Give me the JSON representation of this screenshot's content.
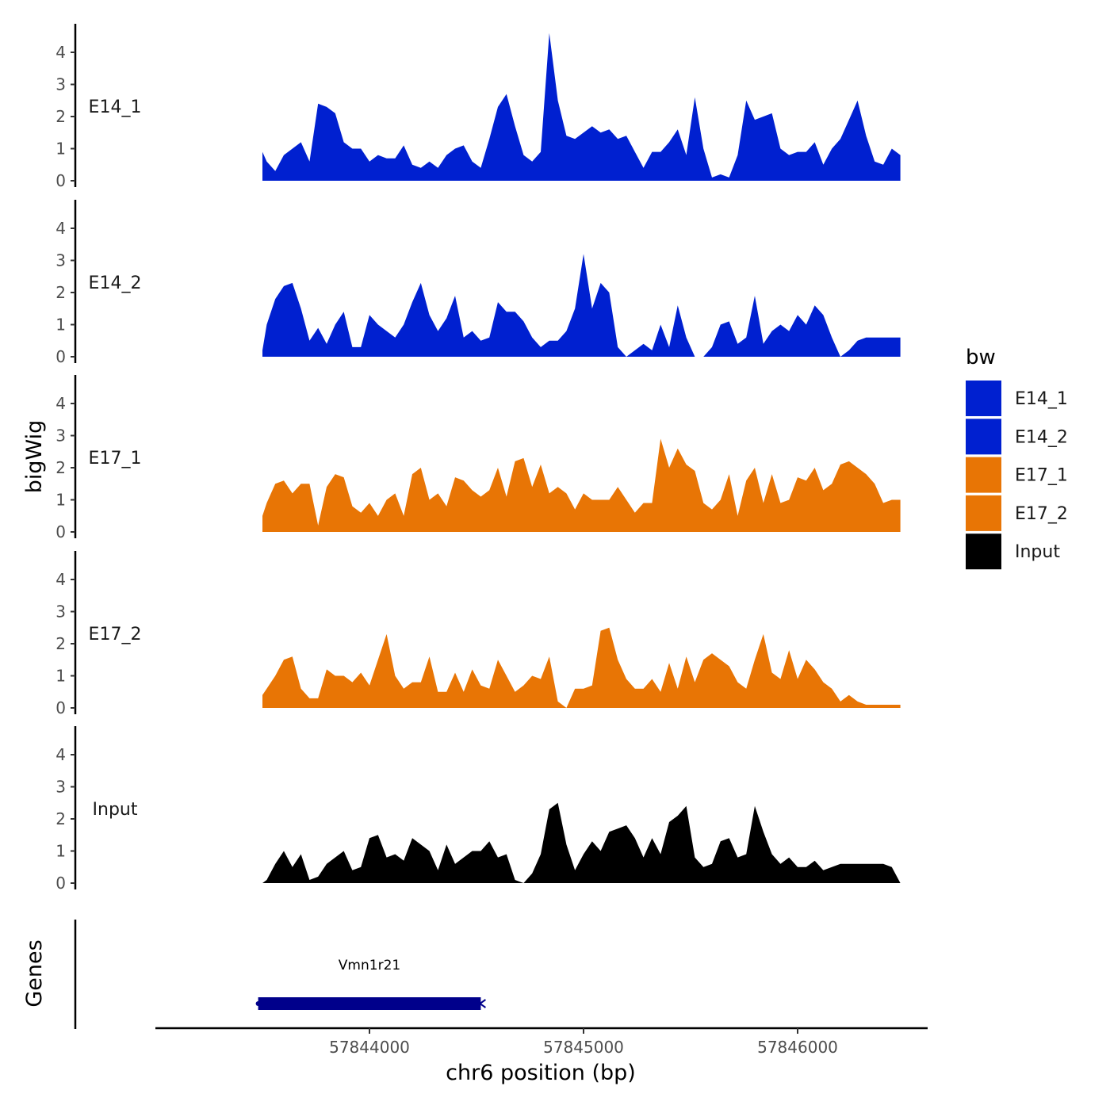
{
  "chart_data": {
    "type": "area",
    "title": "",
    "y_axis_title": "bigWig",
    "genes_axis_title": "Genes",
    "xlabel": "chr6 position (bp)",
    "x_ticks": [
      57844000,
      57845000,
      57846000
    ],
    "x_tick_labels": [
      "57844000",
      "57845000",
      "57846000"
    ],
    "xlim": [
      57843000,
      57846600
    ],
    "ylim": [
      0,
      4.8
    ],
    "y_ticks": [
      0,
      1,
      2,
      3,
      4
    ],
    "y_tick_labels": [
      "0",
      "1",
      "2",
      "3",
      "4"
    ],
    "grid": false,
    "legend": {
      "title": "bw",
      "position": "right",
      "entries": [
        {
          "label": "E14_1",
          "color": "#0020D0"
        },
        {
          "label": "E14_2",
          "color": "#0020D0"
        },
        {
          "label": "E17_1",
          "color": "#E87505"
        },
        {
          "label": "E17_2",
          "color": "#E87505"
        },
        {
          "label": "Input",
          "color": "#000000"
        }
      ]
    },
    "series": [
      {
        "name": "E14_1",
        "color": "#0020D0",
        "x": [
          57843500,
          57843520,
          57843560,
          57843600,
          57843640,
          57843680,
          57843720,
          57843760,
          57843800,
          57843840,
          57843880,
          57843920,
          57843960,
          57844000,
          57844040,
          57844080,
          57844120,
          57844160,
          57844200,
          57844240,
          57844280,
          57844320,
          57844360,
          57844400,
          57844440,
          57844480,
          57844520,
          57844560,
          57844600,
          57844640,
          57844680,
          57844720,
          57844760,
          57844800,
          57844840,
          57844880,
          57844920,
          57844960,
          57845000,
          57845040,
          57845080,
          57845120,
          57845160,
          57845200,
          57845240,
          57845280,
          57845320,
          57845360,
          57845400,
          57845440,
          57845480,
          57845520,
          57845560,
          57845600,
          57845640,
          57845680,
          57845720,
          57845760,
          57845800,
          57845840,
          57845880,
          57845920,
          57845960,
          57846000,
          57846040,
          57846080,
          57846120,
          57846160,
          57846200,
          57846240,
          57846280,
          57846320,
          57846360,
          57846400,
          57846440,
          57846480
        ],
        "y": [
          0.9,
          0.6,
          0.3,
          0.8,
          1.0,
          1.2,
          0.6,
          2.4,
          2.3,
          2.1,
          1.2,
          1.0,
          1.0,
          0.6,
          0.8,
          0.7,
          0.7,
          1.1,
          0.5,
          0.4,
          0.6,
          0.4,
          0.8,
          1.0,
          1.1,
          0.6,
          0.4,
          1.3,
          2.3,
          2.7,
          1.7,
          0.8,
          0.6,
          0.9,
          4.6,
          2.5,
          1.4,
          1.3,
          1.5,
          1.7,
          1.5,
          1.6,
          1.3,
          1.4,
          0.9,
          0.4,
          0.9,
          0.9,
          1.2,
          1.6,
          0.8,
          2.6,
          1.0,
          0.1,
          0.2,
          0.1,
          0.8,
          2.5,
          1.9,
          2.0,
          2.1,
          1.0,
          0.8,
          0.9,
          0.9,
          1.2,
          0.5,
          1.0,
          1.3,
          1.9,
          2.5,
          1.4,
          0.6,
          0.5,
          1.0,
          0.8
        ]
      },
      {
        "name": "E14_2",
        "color": "#0020D0",
        "x": [
          57843500,
          57843520,
          57843560,
          57843600,
          57843640,
          57843680,
          57843720,
          57843760,
          57843800,
          57843840,
          57843880,
          57843920,
          57843960,
          57844000,
          57844040,
          57844080,
          57844120,
          57844160,
          57844200,
          57844240,
          57844280,
          57844320,
          57844360,
          57844400,
          57844440,
          57844480,
          57844520,
          57844560,
          57844600,
          57844640,
          57844680,
          57844720,
          57844760,
          57844800,
          57844840,
          57844880,
          57844920,
          57844960,
          57845000,
          57845040,
          57845080,
          57845120,
          57845160,
          57845200,
          57845240,
          57845280,
          57845320,
          57845360,
          57845400,
          57845440,
          57845480,
          57845520,
          57845560,
          57845600,
          57845640,
          57845680,
          57845720,
          57845760,
          57845800,
          57845840,
          57845880,
          57845920,
          57845960,
          57846000,
          57846040,
          57846080,
          57846120,
          57846160,
          57846200,
          57846240,
          57846280,
          57846320,
          57846360,
          57846400,
          57846440,
          57846480
        ],
        "y": [
          0.2,
          1.0,
          1.8,
          2.2,
          2.3,
          1.5,
          0.5,
          0.9,
          0.4,
          1.0,
          1.4,
          0.3,
          0.3,
          1.3,
          1.0,
          0.8,
          0.6,
          1.0,
          1.7,
          2.3,
          1.3,
          0.8,
          1.2,
          1.9,
          0.6,
          0.8,
          0.5,
          0.6,
          1.7,
          1.4,
          1.4,
          1.1,
          0.6,
          0.3,
          0.5,
          0.5,
          0.8,
          1.5,
          3.2,
          1.5,
          2.3,
          2.0,
          0.3,
          0.0,
          0.2,
          0.4,
          0.2,
          1.0,
          0.3,
          1.6,
          0.6,
          0.0,
          0.0,
          0.3,
          1.0,
          1.1,
          0.4,
          0.6,
          1.9,
          0.4,
          0.8,
          1.0,
          0.8,
          1.3,
          1.0,
          1.6,
          1.3,
          0.6,
          0.0,
          0.2,
          0.5,
          0.6,
          0.6,
          0.6,
          0.6,
          0.6
        ]
      },
      {
        "name": "E17_1",
        "color": "#E87505",
        "x": [
          57843500,
          57843520,
          57843560,
          57843600,
          57843640,
          57843680,
          57843720,
          57843760,
          57843800,
          57843840,
          57843880,
          57843920,
          57843960,
          57844000,
          57844040,
          57844080,
          57844120,
          57844160,
          57844200,
          57844240,
          57844280,
          57844320,
          57844360,
          57844400,
          57844440,
          57844480,
          57844520,
          57844560,
          57844600,
          57844640,
          57844680,
          57844720,
          57844760,
          57844800,
          57844840,
          57844880,
          57844920,
          57844960,
          57845000,
          57845040,
          57845080,
          57845120,
          57845160,
          57845200,
          57845240,
          57845280,
          57845320,
          57845360,
          57845400,
          57845440,
          57845480,
          57845520,
          57845560,
          57845600,
          57845640,
          57845680,
          57845720,
          57845760,
          57845800,
          57845840,
          57845880,
          57845920,
          57845960,
          57846000,
          57846040,
          57846080,
          57846120,
          57846160,
          57846200,
          57846240,
          57846280,
          57846320,
          57846360,
          57846400,
          57846440,
          57846480
        ],
        "y": [
          0.5,
          0.9,
          1.5,
          1.6,
          1.2,
          1.5,
          1.5,
          0.2,
          1.4,
          1.8,
          1.7,
          0.8,
          0.6,
          0.9,
          0.5,
          1.0,
          1.2,
          0.5,
          1.8,
          2.0,
          1.0,
          1.2,
          0.8,
          1.7,
          1.6,
          1.3,
          1.1,
          1.3,
          2.0,
          1.1,
          2.2,
          2.3,
          1.4,
          2.1,
          1.2,
          1.4,
          1.2,
          0.7,
          1.2,
          1.0,
          1.0,
          1.0,
          1.4,
          1.0,
          0.6,
          0.9,
          0.9,
          2.9,
          2.0,
          2.6,
          2.1,
          1.9,
          0.9,
          0.7,
          1.0,
          1.8,
          0.5,
          1.6,
          2.0,
          0.9,
          1.8,
          0.9,
          1.0,
          1.7,
          1.6,
          2.0,
          1.3,
          1.5,
          2.1,
          2.2,
          2.0,
          1.8,
          1.5,
          0.9,
          1.0,
          1.0
        ]
      },
      {
        "name": "E17_2",
        "color": "#E87505",
        "x": [
          57843500,
          57843520,
          57843560,
          57843600,
          57843640,
          57843680,
          57843720,
          57843760,
          57843800,
          57843840,
          57843880,
          57843920,
          57843960,
          57844000,
          57844040,
          57844080,
          57844120,
          57844160,
          57844200,
          57844240,
          57844280,
          57844320,
          57844360,
          57844400,
          57844440,
          57844480,
          57844520,
          57844560,
          57844600,
          57844640,
          57844680,
          57844720,
          57844760,
          57844800,
          57844840,
          57844880,
          57844920,
          57844960,
          57845000,
          57845040,
          57845080,
          57845120,
          57845160,
          57845200,
          57845240,
          57845280,
          57845320,
          57845360,
          57845400,
          57845440,
          57845480,
          57845520,
          57845560,
          57845600,
          57845640,
          57845680,
          57845720,
          57845760,
          57845800,
          57845840,
          57845880,
          57845920,
          57845960,
          57846000,
          57846040,
          57846080,
          57846120,
          57846160,
          57846200,
          57846240,
          57846280,
          57846320,
          57846360,
          57846400,
          57846440,
          57846480
        ],
        "y": [
          0.4,
          0.6,
          1.0,
          1.5,
          1.6,
          0.6,
          0.3,
          0.3,
          1.2,
          1.0,
          1.0,
          0.8,
          1.1,
          0.7,
          1.5,
          2.3,
          1.0,
          0.6,
          0.8,
          0.8,
          1.6,
          0.5,
          0.5,
          1.1,
          0.5,
          1.2,
          0.7,
          0.6,
          1.5,
          1.0,
          0.5,
          0.7,
          1.0,
          0.9,
          1.6,
          0.2,
          0.0,
          0.6,
          0.6,
          0.7,
          2.4,
          2.5,
          1.5,
          0.9,
          0.6,
          0.6,
          0.9,
          0.5,
          1.4,
          0.6,
          1.6,
          0.8,
          1.5,
          1.7,
          1.5,
          1.3,
          0.8,
          0.6,
          1.5,
          2.3,
          1.1,
          0.9,
          1.8,
          0.9,
          1.5,
          1.2,
          0.8,
          0.6,
          0.2,
          0.4,
          0.2,
          0.1,
          0.1,
          0.1,
          0.1,
          0.1
        ]
      },
      {
        "name": "Input",
        "color": "#000000",
        "x": [
          57843500,
          57843520,
          57843560,
          57843600,
          57843640,
          57843680,
          57843720,
          57843760,
          57843800,
          57843840,
          57843880,
          57843920,
          57843960,
          57844000,
          57844040,
          57844080,
          57844120,
          57844160,
          57844200,
          57844240,
          57844280,
          57844320,
          57844360,
          57844400,
          57844440,
          57844480,
          57844520,
          57844560,
          57844600,
          57844640,
          57844680,
          57844720,
          57844760,
          57844800,
          57844840,
          57844880,
          57844920,
          57844960,
          57845000,
          57845040,
          57845080,
          57845120,
          57845160,
          57845200,
          57845240,
          57845280,
          57845320,
          57845360,
          57845400,
          57845440,
          57845480,
          57845520,
          57845560,
          57845600,
          57845640,
          57845680,
          57845720,
          57845760,
          57845800,
          57845840,
          57845880,
          57845920,
          57845960,
          57846000,
          57846040,
          57846080,
          57846120,
          57846160,
          57846200,
          57846240,
          57846280,
          57846320,
          57846360,
          57846400,
          57846440,
          57846480
        ],
        "y": [
          0.0,
          0.1,
          0.6,
          1.0,
          0.5,
          0.9,
          0.1,
          0.2,
          0.6,
          0.8,
          1.0,
          0.4,
          0.5,
          1.4,
          1.5,
          0.8,
          0.9,
          0.7,
          1.4,
          1.2,
          1.0,
          0.4,
          1.2,
          0.6,
          0.8,
          1.0,
          1.0,
          1.3,
          0.8,
          0.9,
          0.1,
          0.0,
          0.3,
          0.9,
          2.3,
          2.5,
          1.2,
          0.4,
          0.9,
          1.3,
          1.0,
          1.6,
          1.7,
          1.8,
          1.4,
          0.8,
          1.4,
          0.9,
          1.9,
          2.1,
          2.4,
          0.8,
          0.5,
          0.6,
          1.3,
          1.4,
          0.8,
          0.9,
          2.4,
          1.6,
          0.9,
          0.6,
          0.8,
          0.5,
          0.5,
          0.7,
          0.4,
          0.5,
          0.6,
          0.6,
          0.6,
          0.6,
          0.6,
          0.6,
          0.5,
          0.0
        ]
      }
    ],
    "genes": [
      {
        "name": "Vmn1r21",
        "start": 57843480,
        "end": 57844520,
        "strand": "-",
        "color": "#00008B"
      }
    ]
  }
}
